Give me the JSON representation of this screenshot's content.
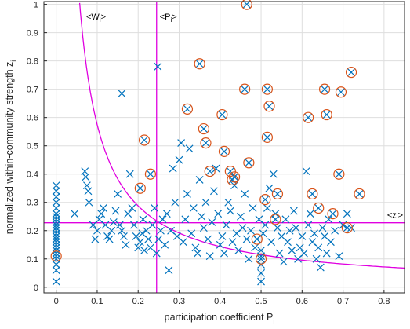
{
  "chart_data": {
    "type": "scatter",
    "xlabel": "participation coefficient P",
    "xlabel_subscript": "i",
    "ylabel": "normalized within-community strength z",
    "ylabel_subscript": "i",
    "xlim": [
      -0.03,
      0.85
    ],
    "ylim": [
      -0.02,
      1.01
    ],
    "xticks": [
      0,
      0.1,
      0.2,
      0.3,
      0.4,
      0.5,
      0.6,
      0.7,
      0.8
    ],
    "yticks": [
      0,
      0.1,
      0.2,
      0.3,
      0.4,
      0.5,
      0.6,
      0.7,
      0.8,
      0.9,
      1
    ],
    "grid": true,
    "colors": {
      "markers": "#0072BD",
      "highlight": "#D95319",
      "threshold": "#E000E0",
      "axes": "#262626",
      "grid": "#dedede"
    },
    "thresholds": {
      "mean_P": {
        "label": "<P",
        "sub": "i",
        "tail": ">",
        "value": 0.245
      },
      "mean_z": {
        "label": "<z",
        "sub": "i",
        "tail": ">",
        "value": 0.228
      },
      "W_curve": {
        "label": "<W",
        "sub": "i",
        "tail": ">",
        "k": 0.0575
      }
    },
    "series": [
      {
        "marker": "x",
        "points": [
          [
            0,
            0.02
          ],
          [
            0,
            0.06
          ],
          [
            0,
            0.08
          ],
          [
            0,
            0.1
          ],
          [
            0,
            0.12
          ],
          [
            0,
            0.13
          ],
          [
            0,
            0.14
          ],
          [
            0,
            0.15
          ],
          [
            0,
            0.16
          ],
          [
            0,
            0.17
          ],
          [
            0,
            0.18
          ],
          [
            0,
            0.19
          ],
          [
            0,
            0.2
          ],
          [
            0,
            0.21
          ],
          [
            0,
            0.22
          ],
          [
            0,
            0.23
          ],
          [
            0,
            0.24
          ],
          [
            0,
            0.25
          ],
          [
            0,
            0.26
          ],
          [
            0,
            0.28
          ],
          [
            0,
            0.3
          ],
          [
            0,
            0.32
          ],
          [
            0,
            0.34
          ],
          [
            0,
            0.36
          ],
          [
            0.045,
            0.26
          ],
          [
            0.07,
            0.41
          ],
          [
            0.072,
            0.39
          ],
          [
            0.075,
            0.36
          ],
          [
            0.078,
            0.34
          ],
          [
            0.08,
            0.3
          ],
          [
            0.09,
            0.22
          ],
          [
            0.095,
            0.17
          ],
          [
            0.1,
            0.2
          ],
          [
            0.105,
            0.24
          ],
          [
            0.11,
            0.26
          ],
          [
            0.115,
            0.28
          ],
          [
            0.12,
            0.22
          ],
          [
            0.125,
            0.18
          ],
          [
            0.13,
            0.17
          ],
          [
            0.135,
            0.2
          ],
          [
            0.14,
            0.23
          ],
          [
            0.145,
            0.27
          ],
          [
            0.15,
            0.33
          ],
          [
            0.155,
            0.22
          ],
          [
            0.16,
            0.685
          ],
          [
            0.16,
            0.2
          ],
          [
            0.165,
            0.18
          ],
          [
            0.17,
            0.15
          ],
          [
            0.175,
            0.26
          ],
          [
            0.18,
            0.4
          ],
          [
            0.185,
            0.28
          ],
          [
            0.19,
            0.22
          ],
          [
            0.195,
            0.18
          ],
          [
            0.2,
            0.14
          ],
          [
            0.205,
            0.16
          ],
          [
            0.21,
            0.19
          ],
          [
            0.212,
            0.24
          ],
          [
            0.215,
            0.13
          ],
          [
            0.22,
            0.2
          ],
          [
            0.225,
            0.17
          ],
          [
            0.23,
            0.14
          ],
          [
            0.235,
            0.22
          ],
          [
            0.24,
            0.28
          ],
          [
            0.245,
            0.12
          ],
          [
            0.248,
            0.78
          ],
          [
            0.25,
            0.17
          ],
          [
            0.255,
            0.2
          ],
          [
            0.26,
            0.24
          ],
          [
            0.265,
            0.15
          ],
          [
            0.27,
            0.26
          ],
          [
            0.275,
            0.06
          ],
          [
            0.28,
            0.2
          ],
          [
            0.285,
            0.42
          ],
          [
            0.29,
            0.3
          ],
          [
            0.295,
            0.18
          ],
          [
            0.3,
            0.45
          ],
          [
            0.305,
            0.51
          ],
          [
            0.31,
            0.16
          ],
          [
            0.315,
            0.24
          ],
          [
            0.32,
            0.33
          ],
          [
            0.325,
            0.49
          ],
          [
            0.33,
            0.19
          ],
          [
            0.335,
            0.28
          ],
          [
            0.34,
            0.14
          ],
          [
            0.345,
            0.12
          ],
          [
            0.35,
            0.38
          ],
          [
            0.355,
            0.25
          ],
          [
            0.36,
            0.21
          ],
          [
            0.365,
            0.3
          ],
          [
            0.37,
            0.17
          ],
          [
            0.375,
            0.11
          ],
          [
            0.38,
            0.23
          ],
          [
            0.385,
            0.34
          ],
          [
            0.39,
            0.42
          ],
          [
            0.395,
            0.26
          ],
          [
            0.4,
            0.15
          ],
          [
            0.405,
            0.18
          ],
          [
            0.41,
            0.12
          ],
          [
            0.415,
            0.22
          ],
          [
            0.42,
            0.3
          ],
          [
            0.425,
            0.27
          ],
          [
            0.43,
            0.16
          ],
          [
            0.435,
            0.36
          ],
          [
            0.44,
            0.19
          ],
          [
            0.445,
            0.13
          ],
          [
            0.45,
            0.25
          ],
          [
            0.455,
            0.21
          ],
          [
            0.46,
            0.33
          ],
          [
            0.465,
            0.17
          ],
          [
            0.47,
            0.1
          ],
          [
            0.475,
            0.2
          ],
          [
            0.48,
            0.28
          ],
          [
            0.485,
            0.14
          ],
          [
            0.49,
            0.17
          ],
          [
            0.495,
            0.24
          ],
          [
            0.5,
            0.02
          ],
          [
            0.5,
            0.05
          ],
          [
            0.5,
            0.08
          ],
          [
            0.5,
            0.11
          ],
          [
            0.5,
            0.13
          ],
          [
            0.505,
            0.19
          ],
          [
            0.51,
            0.22
          ],
          [
            0.515,
            0.28
          ],
          [
            0.52,
            0.35
          ],
          [
            0.525,
            0.16
          ],
          [
            0.53,
            0.4
          ],
          [
            0.535,
            0.26
          ],
          [
            0.54,
            0.21
          ],
          [
            0.545,
            0.12
          ],
          [
            0.55,
            0.18
          ],
          [
            0.555,
            0.09
          ],
          [
            0.56,
            0.24
          ],
          [
            0.565,
            0.16
          ],
          [
            0.57,
            0.2
          ],
          [
            0.575,
            0.13
          ],
          [
            0.58,
            0.27
          ],
          [
            0.585,
            0.21
          ],
          [
            0.59,
            0.1
          ],
          [
            0.595,
            0.14
          ],
          [
            0.6,
            0.18
          ],
          [
            0.605,
            0.12
          ],
          [
            0.61,
            0.41
          ],
          [
            0.615,
            0.22
          ],
          [
            0.62,
            0.26
          ],
          [
            0.625,
            0.16
          ],
          [
            0.63,
            0.19
          ],
          [
            0.635,
            0.1
          ],
          [
            0.64,
            0.14
          ],
          [
            0.645,
            0.07
          ],
          [
            0.65,
            0.21
          ],
          [
            0.655,
            0.18
          ],
          [
            0.66,
            0.12
          ],
          [
            0.665,
            0.24
          ],
          [
            0.67,
            0.16
          ],
          [
            0.68,
            0.2
          ],
          [
            0.69,
            0.11
          ],
          [
            0.7,
            0.22
          ],
          [
            0.71,
            0.26
          ],
          [
            0.72,
            0.21
          ]
        ]
      },
      {
        "marker": "x-circled",
        "points": [
          [
            0,
            0.11
          ],
          [
            0.205,
            0.35
          ],
          [
            0.215,
            0.52
          ],
          [
            0.23,
            0.4
          ],
          [
            0.32,
            0.63
          ],
          [
            0.35,
            0.79
          ],
          [
            0.36,
            0.56
          ],
          [
            0.365,
            0.51
          ],
          [
            0.375,
            0.41
          ],
          [
            0.405,
            0.61
          ],
          [
            0.41,
            0.48
          ],
          [
            0.425,
            0.41
          ],
          [
            0.43,
            0.38
          ],
          [
            0.435,
            0.39
          ],
          [
            0.46,
            0.7
          ],
          [
            0.47,
            0.44
          ],
          [
            0.465,
            1.0
          ],
          [
            0.49,
            0.17
          ],
          [
            0.5,
            0.1
          ],
          [
            0.51,
            0.31
          ],
          [
            0.515,
            0.53
          ],
          [
            0.515,
            0.7
          ],
          [
            0.52,
            0.64
          ],
          [
            0.535,
            0.24
          ],
          [
            0.54,
            0.33
          ],
          [
            0.615,
            0.6
          ],
          [
            0.625,
            0.33
          ],
          [
            0.64,
            0.28
          ],
          [
            0.655,
            0.7
          ],
          [
            0.66,
            0.61
          ],
          [
            0.675,
            0.26
          ],
          [
            0.69,
            0.4
          ],
          [
            0.695,
            0.69
          ],
          [
            0.71,
            0.21
          ],
          [
            0.72,
            0.76
          ],
          [
            0.74,
            0.33
          ]
        ]
      }
    ]
  }
}
